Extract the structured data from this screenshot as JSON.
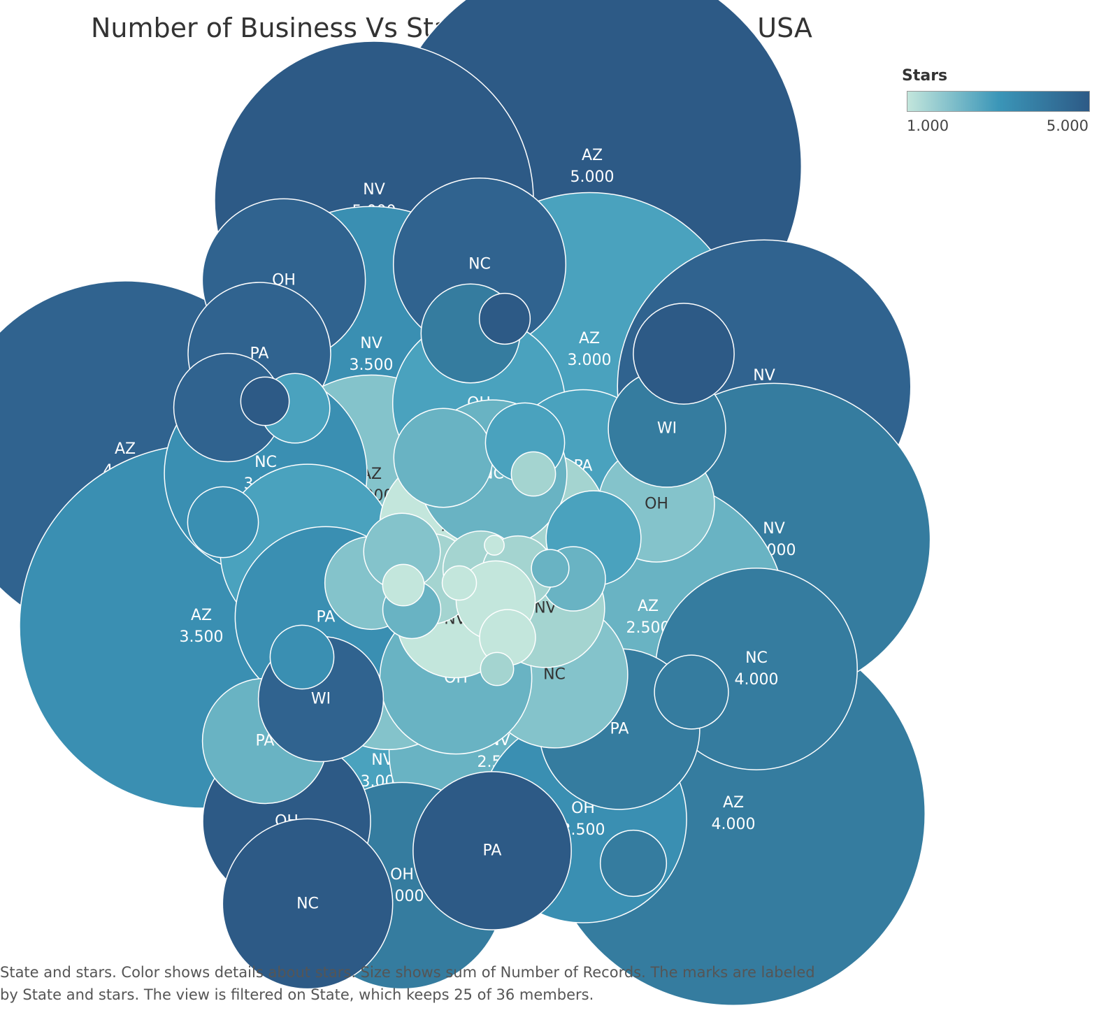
{
  "chart_data": {
    "type": "packed bubble",
    "title": "Number of Business Vs State-wise Star Ratings in USA",
    "legend": {
      "title": "Stars",
      "min_label": "1.000",
      "max_label": "5.000",
      "colors": [
        "#c3e6dc",
        "#3b96b8",
        "#2d5a86"
      ],
      "placement": "top-right"
    },
    "caption": [
      "State and stars.  Color shows details about stars.  Size shows sum of Number of Records.  The marks are labeled",
      "by State and stars. The view is filtered on State, which keeps 25 of 36 members."
    ],
    "bubbles": [
      {
        "state": "AZ",
        "stars": 5.0,
        "records": 22400,
        "label": [
          "AZ",
          "5.000"
        ],
        "color": "#2d5a86"
      },
      {
        "state": "NV",
        "stars": 5.0,
        "records": 13000,
        "label": [
          "NV",
          "5.000"
        ],
        "color": "#2d5a86"
      },
      {
        "state": "AZ",
        "stars": 4.5,
        "records": 16400,
        "label": [
          "AZ",
          "4.500"
        ],
        "color": "#30638f"
      },
      {
        "state": "AZ",
        "stars": 3.5,
        "records": 16900,
        "label": [
          "AZ",
          "3.500"
        ],
        "color": "#3a8fb2"
      },
      {
        "state": "AZ",
        "stars": 4.0,
        "records": 18800,
        "label": [
          "AZ",
          "4.000"
        ],
        "color": "#357c9f"
      },
      {
        "state": "AZ",
        "stars": 3.0,
        "records": 12600,
        "label": [
          "AZ",
          "3.000"
        ],
        "color": "#4aa2be"
      },
      {
        "state": "NV",
        "stars": 3.5,
        "records": 11200,
        "label": [
          "NV",
          "3.500"
        ],
        "color": "#3a8fb2"
      },
      {
        "state": "NV",
        "stars": 4.5,
        "records": 11000,
        "label": [
          "NV",
          "4.500"
        ],
        "color": "#30638f"
      },
      {
        "state": "NV",
        "stars": 4.0,
        "records": 12500,
        "label": [
          "NV",
          "4.000"
        ],
        "color": "#357c9f"
      },
      {
        "state": "AZ",
        "stars": 2.5,
        "records": 9750,
        "label": [
          "AZ",
          "2.500"
        ],
        "color": "#69b3c3"
      },
      {
        "state": "NV",
        "stars": 3.0,
        "records": 8450,
        "label": [
          "NV",
          "3.000"
        ],
        "color": "#4aa2be"
      },
      {
        "state": "AZ",
        "stars": 2.0,
        "records": 6200,
        "label": [
          "AZ",
          "2.000"
        ],
        "color": "#84c3cb"
      },
      {
        "state": "NV",
        "stars": 2.5,
        "records": 6200,
        "label": [
          "NV",
          "2.500"
        ],
        "color": "#69b3c3"
      },
      {
        "state": "NC",
        "stars": 4.0,
        "records": 5200,
        "label": [
          "NC",
          "4.000"
        ],
        "color": "#357c9f"
      },
      {
        "state": "NC",
        "stars": 3.5,
        "records": 5250,
        "label": [
          "NC",
          "3.500"
        ],
        "color": "#3a8fb2"
      },
      {
        "state": "OH",
        "stars": 4.0,
        "records": 5450,
        "label": [
          "OH",
          "4.000"
        ],
        "color": "#357c9f"
      },
      {
        "state": "OH",
        "stars": 3.5,
        "records": 5480,
        "label": [
          "OH",
          "3.500"
        ],
        "color": "#3a8fb2"
      },
      {
        "state": "NV",
        "stars": 2.0,
        "records": 3800,
        "label": [
          "NV"
        ],
        "color": "#84c3cb"
      },
      {
        "state": "NC",
        "stars": 4.5,
        "records": 3800,
        "label": [
          "NC"
        ],
        "color": "#30638f"
      },
      {
        "state": "NC",
        "stars": 3.0,
        "records": 3900,
        "label": [
          "NC"
        ],
        "color": "#4aa2be"
      },
      {
        "state": "OH",
        "stars": 4.5,
        "records": 3400,
        "label": [
          "OH"
        ],
        "color": "#30638f"
      },
      {
        "state": "PA",
        "stars": 4.5,
        "records": 2600,
        "label": [
          "PA"
        ],
        "color": "#30638f"
      },
      {
        "state": "OH",
        "stars": 3.0,
        "records": 3800,
        "label": [
          "OH"
        ],
        "color": "#4aa2be"
      },
      {
        "state": "PA",
        "stars": 3.5,
        "records": 4200,
        "label": [
          "PA"
        ],
        "color": "#3a8fb2"
      },
      {
        "state": "PA",
        "stars": 4.0,
        "records": 3300,
        "label": [
          "PA"
        ],
        "color": "#357c9f"
      },
      {
        "state": "PA",
        "stars": 5.0,
        "records": 3200,
        "label": [
          "PA"
        ],
        "color": "#2d5a86"
      },
      {
        "state": "PA",
        "stars": 3.0,
        "records": 3000,
        "label": [
          "PA"
        ],
        "color": "#4aa2be"
      },
      {
        "state": "OH",
        "stars": 5.0,
        "records": 3600,
        "label": [
          "OH"
        ],
        "color": "#2d5a86"
      },
      {
        "state": "NC",
        "stars": 5.0,
        "records": 3700,
        "label": [
          "NC"
        ],
        "color": "#2d5a86"
      },
      {
        "state": "AZ",
        "stars": 1.5,
        "records": 2650,
        "label": [
          "AZ"
        ],
        "color": "#a4d4d0"
      },
      {
        "state": "AZ",
        "stars": 1.0,
        "records": 2700,
        "label": [
          "AZ"
        ],
        "color": "#c3e6dc"
      },
      {
        "state": "NC",
        "stars": 2.5,
        "records": 2800,
        "label": [
          "NC"
        ],
        "color": "#69b3c3"
      },
      {
        "state": "NC",
        "stars": 2.0,
        "records": 2750,
        "label": [
          "NC"
        ],
        "color": "#84c3cb"
      },
      {
        "state": "OH",
        "stars": 2.5,
        "records": 2950,
        "label": [
          "OH"
        ],
        "color": "#69b3c3"
      },
      {
        "state": "NV",
        "stars": 1.5,
        "records": 1800,
        "label": [
          "NV"
        ],
        "color": "#a4d4d0"
      },
      {
        "state": "NV",
        "stars": 1.0,
        "records": 1750,
        "label": [
          "NV"
        ],
        "color": "#c3e6dc"
      },
      {
        "state": "PA",
        "stars": 2.5,
        "records": 2000,
        "label": [
          "PA"
        ],
        "color": "#69b3c3"
      },
      {
        "state": "OH",
        "stars": 2.0,
        "records": 1720,
        "label": [
          "OH"
        ],
        "color": "#84c3cb"
      },
      {
        "state": "WI",
        "stars": 4.0,
        "records": 1760,
        "label": [
          "WI"
        ],
        "color": "#357c9f"
      },
      {
        "state": "WI",
        "stars": 4.5,
        "records": 2000,
        "label": [
          "WI"
        ],
        "color": "#30638f"
      },
      {
        "state": "",
        "stars": 4.5,
        "records": 1500,
        "label": [],
        "color": "#30638f"
      },
      {
        "state": "",
        "stars": 4.0,
        "records": 1250,
        "label": [],
        "color": "#357c9f"
      },
      {
        "state": "",
        "stars": 5.0,
        "records": 1300,
        "label": [],
        "color": "#2d5a86"
      },
      {
        "state": "",
        "stars": 2.5,
        "records": 1250,
        "label": [],
        "color": "#69b3c3"
      },
      {
        "state": "",
        "stars": 3.0,
        "records": 1150,
        "label": [],
        "color": "#4aa2be"
      },
      {
        "state": "",
        "stars": 2.0,
        "records": 1100,
        "label": [],
        "color": "#84c3cb"
      },
      {
        "state": "",
        "stars": 1.5,
        "records": 1050,
        "label": [],
        "color": "#a4d4d0"
      },
      {
        "state": "",
        "stars": 4.0,
        "records": 700,
        "label": [],
        "color": "#357c9f"
      },
      {
        "state": "",
        "stars": 3.5,
        "records": 640,
        "label": [],
        "color": "#3a8fb2"
      },
      {
        "state": "",
        "stars": 3.0,
        "records": 800,
        "label": [],
        "color": "#4aa2be"
      },
      {
        "state": "",
        "stars": 4.0,
        "records": 560,
        "label": [],
        "color": "#357c9f"
      },
      {
        "state": "",
        "stars": 3.5,
        "records": 520,
        "label": [],
        "color": "#3a8fb2"
      },
      {
        "state": "",
        "stars": 3.0,
        "records": 620,
        "label": [],
        "color": "#4aa2be"
      },
      {
        "state": "",
        "stars": 2.5,
        "records": 530,
        "label": [],
        "color": "#69b3c3"
      },
      {
        "state": "",
        "stars": 2.5,
        "records": 430,
        "label": [],
        "color": "#69b3c3"
      },
      {
        "state": "",
        "stars": 2.0,
        "records": 750,
        "label": [],
        "color": "#84c3cb"
      },
      {
        "state": "",
        "stars": 1.5,
        "records": 740,
        "label": [],
        "color": "#a4d4d0"
      },
      {
        "state": "",
        "stars": 1.5,
        "records": 660,
        "label": [],
        "color": "#a4d4d0"
      },
      {
        "state": "",
        "stars": 1.0,
        "records": 800,
        "label": [],
        "color": "#c3e6dc"
      },
      {
        "state": "",
        "stars": 1.0,
        "records": 400,
        "label": [],
        "color": "#c3e6dc"
      },
      {
        "state": "",
        "stars": 5.0,
        "records": 330,
        "label": [],
        "color": "#2d5a86"
      },
      {
        "state": "",
        "stars": 5.0,
        "records": 300,
        "label": [],
        "color": "#2d5a86"
      },
      {
        "state": "",
        "stars": 1.5,
        "records": 250,
        "label": [],
        "color": "#a4d4d0"
      },
      {
        "state": "",
        "stars": 1.0,
        "records": 220,
        "label": [],
        "color": "#c3e6dc"
      },
      {
        "state": "",
        "stars": 1.0,
        "records": 150,
        "label": [],
        "color": "#c3e6dc"
      },
      {
        "state": "",
        "stars": 2.5,
        "records": 180,
        "label": [],
        "color": "#69b3c3"
      },
      {
        "state": "",
        "stars": 1.5,
        "records": 140,
        "label": [],
        "color": "#a4d4d0"
      },
      {
        "state": "",
        "stars": 1.0,
        "records": 50,
        "label": [],
        "color": "#c3e6dc"
      }
    ]
  }
}
